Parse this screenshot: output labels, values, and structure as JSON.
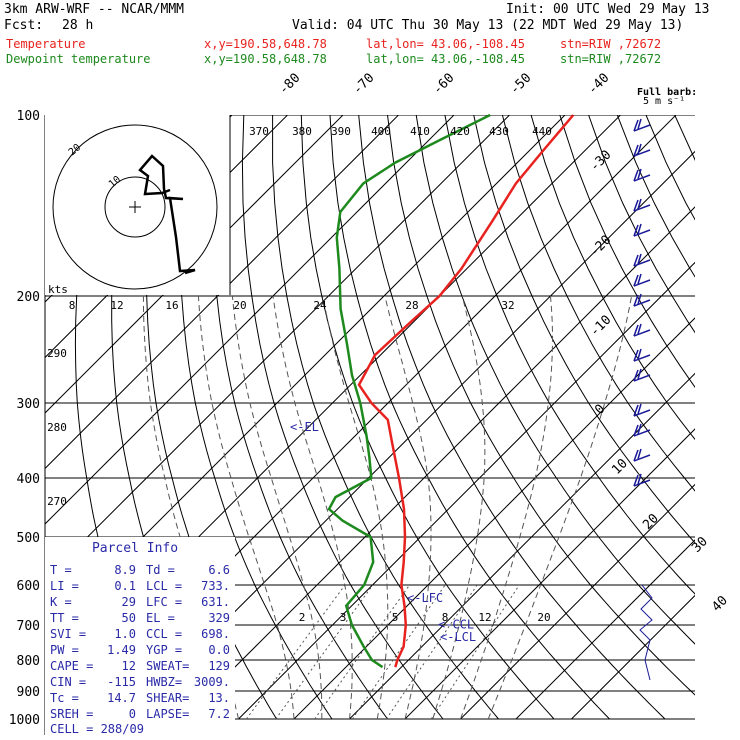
{
  "header": {
    "model": "3km ARW-WRF -- NCAR/MMM",
    "init": "Init: 00 UTC Wed 29 May 13",
    "fcst_label": "Fcst:",
    "fcst_hours": "28 h",
    "valid": "Valid: 04 UTC Thu 30 May 13 (22 MDT Wed 29 May 13)",
    "temp_label": "Temperature",
    "dew_label": "Dewpoint temperature",
    "xy": "x,y=190.58,648.78",
    "latlon": "lat,lon= 43.06,-108.45",
    "stn": "stn=RIW ,72672",
    "barb_key_1": "Full barb:",
    "barb_key_2": "5 m s⁻¹"
  },
  "colors": {
    "temperature": "#e8231f",
    "dewpoint": "#1e8a1e",
    "panel_text": "#2a2aa8",
    "isobar": "#000000",
    "isotherm": "#000000",
    "guide": "#555555",
    "barb": "#1a1a99"
  },
  "chart_data": {
    "type": "skew-t",
    "pressure_levels": [
      100,
      200,
      300,
      400,
      500,
      600,
      700,
      800,
      900,
      1000
    ],
    "pressure_labels": [
      "100",
      "200",
      "300",
      "400",
      "500",
      "600",
      "700",
      "800",
      "900",
      "1000"
    ],
    "isotherm_labels": [
      "-80",
      "-70",
      "-60",
      "-50",
      "-40",
      "-30",
      "-20",
      "-10",
      "0",
      "10",
      "20",
      "30",
      "40"
    ],
    "theta_labels": [
      "370",
      "380",
      "390",
      "400",
      "410",
      "420",
      "430",
      "440"
    ],
    "mixing_ratio_labels": [
      "2",
      "3",
      "5",
      "8",
      "12",
      "20"
    ],
    "temperature_profile": [
      {
        "p": 822,
        "t": 8.9
      },
      {
        "p": 800,
        "t": 8.0
      },
      {
        "p": 760,
        "t": 6.7
      },
      {
        "p": 700,
        "t": 3.2
      },
      {
        "p": 650,
        "t": -0.5
      },
      {
        "p": 600,
        "t": -4.8
      },
      {
        "p": 550,
        "t": -8.5
      },
      {
        "p": 500,
        "t": -12.8
      },
      {
        "p": 450,
        "t": -18.0
      },
      {
        "p": 400,
        "t": -24.5
      },
      {
        "p": 350,
        "t": -32.0
      },
      {
        "p": 320,
        "t": -37.0
      },
      {
        "p": 300,
        "t": -43.0
      },
      {
        "p": 280,
        "t": -48.5
      },
      {
        "p": 250,
        "t": -51.0
      },
      {
        "p": 220,
        "t": -50.5
      },
      {
        "p": 200,
        "t": -50.0
      },
      {
        "p": 180,
        "t": -51.0
      },
      {
        "p": 150,
        "t": -54.0
      },
      {
        "p": 130,
        "t": -56.5
      },
      {
        "p": 115,
        "t": -57.5
      },
      {
        "p": 100,
        "t": -58.5
      }
    ],
    "dewpoint_profile": [
      {
        "p": 822,
        "t": 6.6
      },
      {
        "p": 800,
        "t": 3.4
      },
      {
        "p": 760,
        "t": -0.5
      },
      {
        "p": 700,
        "t": -6.5
      },
      {
        "p": 650,
        "t": -11.0
      },
      {
        "p": 600,
        "t": -11.5
      },
      {
        "p": 550,
        "t": -14.0
      },
      {
        "p": 500,
        "t": -19.0
      },
      {
        "p": 470,
        "t": -27.0
      },
      {
        "p": 450,
        "t": -31.5
      },
      {
        "p": 430,
        "t": -32.5
      },
      {
        "p": 400,
        "t": -29.5
      },
      {
        "p": 370,
        "t": -33.5
      },
      {
        "p": 340,
        "t": -38.0
      },
      {
        "p": 300,
        "t": -45.0
      },
      {
        "p": 270,
        "t": -51.5
      },
      {
        "p": 240,
        "t": -58.0
      },
      {
        "p": 210,
        "t": -65.5
      },
      {
        "p": 180,
        "t": -73.0
      },
      {
        "p": 160,
        "t": -79.0
      },
      {
        "p": 145,
        "t": -83.0
      },
      {
        "p": 130,
        "t": -84.0
      },
      {
        "p": 120,
        "t": -82.0
      },
      {
        "p": 110,
        "t": -78.0
      },
      {
        "p": 100,
        "t": -73.5
      }
    ],
    "level_markers": [
      {
        "label": "<-EL",
        "p": 329
      },
      {
        "label": "<-LFC",
        "p": 631
      },
      {
        "label": "<-CCL",
        "p": 698
      },
      {
        "label": "<-LCL",
        "p": 733
      }
    ],
    "hodograph": {
      "units": "kts",
      "ring_labels": [
        "10",
        "20"
      ]
    },
    "parcel_info": {
      "title": "Parcel Info",
      "rows": [
        [
          "T  =",
          "8.9",
          "Td =",
          "6.6"
        ],
        [
          "LI =",
          "0.1",
          "LCL =",
          "733."
        ],
        [
          "K  =",
          "29",
          "LFC =",
          "631."
        ],
        [
          "TT =",
          "50",
          "EL  =",
          "329"
        ],
        [
          "SVI =",
          "1.0",
          "CCL =",
          "698."
        ],
        [
          "PW =",
          "1.49",
          "YGP =",
          "0.0"
        ],
        [
          "CAPE =",
          "12",
          "SWEAT=",
          "129"
        ],
        [
          "CIN =",
          "-115",
          "HWBZ=",
          "3009."
        ],
        [
          "Tc =",
          "14.7",
          "SHEAR=",
          "13."
        ],
        [
          "SREH =",
          "0",
          "LAPSE=",
          "7.2"
        ]
      ],
      "cell": "CELL = 288/09"
    }
  }
}
